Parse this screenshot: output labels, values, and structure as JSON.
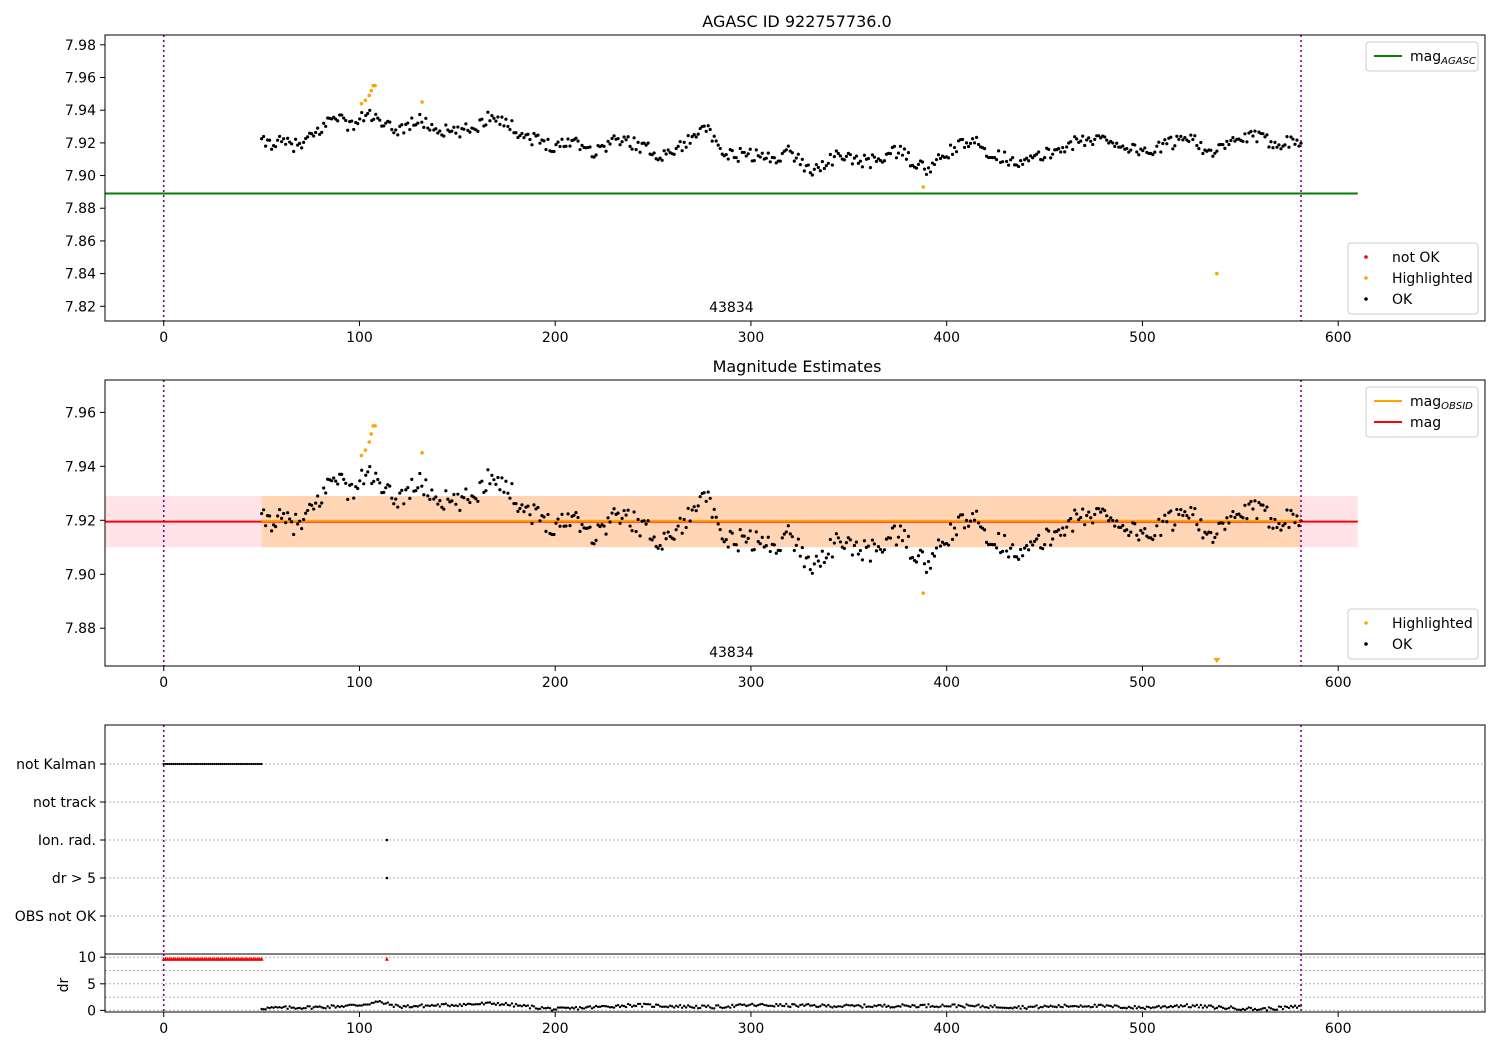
{
  "chart_data": [
    {
      "type": "scatter",
      "title": "AGASC ID 922757736.0",
      "xlim": [
        -30,
        675
      ],
      "ylim": [
        7.811,
        7.986
      ],
      "xticks": [
        0,
        100,
        200,
        300,
        400,
        500,
        600
      ],
      "yticks": [
        7.82,
        7.84,
        7.86,
        7.88,
        7.9,
        7.92,
        7.94,
        7.96,
        7.98
      ],
      "ytick_labels": [
        "7.82",
        "7.84",
        "7.86",
        "7.88",
        "7.90",
        "7.92",
        "7.94",
        "7.96",
        "7.98"
      ],
      "vlines": [
        0,
        581
      ],
      "obsid_label": {
        "text": "43834",
        "x": 290
      },
      "legend_upper": {
        "placement": "upper-right",
        "entries": [
          {
            "label": "mag",
            "sub": "AGASC",
            "color": "#008000",
            "kind": "line"
          }
        ]
      },
      "legend_lower": {
        "placement": "lower-right",
        "entries": [
          {
            "label": "not OK",
            "color": "#ff0000",
            "kind": "dot"
          },
          {
            "label": "Highlighted",
            "color": "#ffa500",
            "kind": "dot"
          },
          {
            "label": "OK",
            "color": "#000000",
            "kind": "dot"
          }
        ]
      },
      "series": [
        {
          "name": "mag AGASC",
          "kind": "hline",
          "y": 7.889,
          "x": [
            -30,
            610
          ],
          "color": "#008000"
        },
        {
          "name": "OK",
          "kind": "trace",
          "x_start": 50,
          "x_end": 581,
          "count": 520,
          "color": "#000000",
          "knots": [
            [
              50,
              7.92
            ],
            [
              60,
              7.92
            ],
            [
              70,
              7.918
            ],
            [
              80,
              7.928
            ],
            [
              88,
              7.938
            ],
            [
              95,
              7.93
            ],
            [
              105,
              7.938
            ],
            [
              112,
              7.93
            ],
            [
              120,
              7.928
            ],
            [
              130,
              7.934
            ],
            [
              140,
              7.928
            ],
            [
              150,
              7.926
            ],
            [
              160,
              7.93
            ],
            [
              168,
              7.938
            ],
            [
              175,
              7.932
            ],
            [
              185,
              7.924
            ],
            [
              200,
              7.918
            ],
            [
              210,
              7.922
            ],
            [
              220,
              7.914
            ],
            [
              230,
              7.922
            ],
            [
              240,
              7.92
            ],
            [
              255,
              7.912
            ],
            [
              270,
              7.922
            ],
            [
              275,
              7.934
            ],
            [
              285,
              7.912
            ],
            [
              300,
              7.913
            ],
            [
              310,
              7.91
            ],
            [
              320,
              7.915
            ],
            [
              330,
              7.903
            ],
            [
              345,
              7.912
            ],
            [
              360,
              7.908
            ],
            [
              375,
              7.915
            ],
            [
              390,
              7.903
            ],
            [
              405,
              7.918
            ],
            [
              415,
              7.92
            ],
            [
              425,
              7.912
            ],
            [
              440,
              7.908
            ],
            [
              455,
              7.915
            ],
            [
              465,
              7.92
            ],
            [
              480,
              7.923
            ],
            [
              495,
              7.916
            ],
            [
              505,
              7.915
            ],
            [
              515,
              7.92
            ],
            [
              525,
              7.925
            ],
            [
              535,
              7.912
            ],
            [
              545,
              7.92
            ],
            [
              555,
              7.924
            ],
            [
              570,
              7.92
            ],
            [
              581,
              7.922
            ]
          ],
          "wiggle": 0.004
        },
        {
          "name": "Highlighted",
          "kind": "points",
          "color": "#ffa500",
          "points": [
            [
              101,
              7.944
            ],
            [
              103,
              7.946
            ],
            [
              105,
              7.949
            ],
            [
              106,
              7.952
            ],
            [
              107,
              7.955
            ],
            [
              108,
              7.955
            ],
            [
              132,
              7.945
            ],
            [
              388,
              7.893
            ],
            [
              538,
              7.84
            ]
          ]
        }
      ]
    },
    {
      "type": "scatter",
      "title": "Magnitude Estimates",
      "xlim": [
        -30,
        675
      ],
      "ylim": [
        7.866,
        7.972
      ],
      "xticks": [
        0,
        100,
        200,
        300,
        400,
        500,
        600
      ],
      "yticks": [
        7.88,
        7.9,
        7.92,
        7.94,
        7.96
      ],
      "ytick_labels": [
        "7.88",
        "7.90",
        "7.92",
        "7.94",
        "7.96"
      ],
      "vlines": [
        0,
        581
      ],
      "obsid_label": {
        "text": "43834",
        "x": 290
      },
      "bands": [
        {
          "name": "mag band",
          "x": [
            -30,
            610
          ],
          "y": [
            7.91,
            7.929
          ],
          "color": "#ffc0cb",
          "opacity": 0.45
        },
        {
          "name": "mag OBSID band",
          "x": [
            50,
            581
          ],
          "y": [
            7.91,
            7.929
          ],
          "color": "#ffa500",
          "opacity": 0.22
        }
      ],
      "legend_upper": {
        "placement": "upper-right",
        "entries": [
          {
            "label": "mag",
            "sub": "OBSID",
            "color": "#ffa500",
            "kind": "line"
          },
          {
            "label": "mag",
            "sub": "",
            "color": "#ff0000",
            "kind": "line"
          }
        ]
      },
      "legend_lower": {
        "placement": "lower-right",
        "entries": [
          {
            "label": "Highlighted",
            "color": "#ffa500",
            "kind": "dot"
          },
          {
            "label": "OK",
            "color": "#000000",
            "kind": "dot"
          }
        ]
      },
      "series": [
        {
          "name": "mag",
          "kind": "hline",
          "y": 7.9195,
          "x": [
            -30,
            610
          ],
          "color": "#ff0000"
        },
        {
          "name": "mag OBSID",
          "kind": "hline",
          "y": 7.9198,
          "x": [
            50,
            581
          ],
          "color": "#ffa500"
        },
        {
          "name": "OK",
          "kind": "trace",
          "x_start": 50,
          "x_end": 581,
          "count": 520,
          "color": "#000000",
          "knots": [
            [
              50,
              7.92
            ],
            [
              60,
              7.92
            ],
            [
              70,
              7.918
            ],
            [
              80,
              7.928
            ],
            [
              88,
              7.938
            ],
            [
              95,
              7.93
            ],
            [
              105,
              7.938
            ],
            [
              112,
              7.93
            ],
            [
              120,
              7.928
            ],
            [
              130,
              7.934
            ],
            [
              140,
              7.928
            ],
            [
              150,
              7.926
            ],
            [
              160,
              7.93
            ],
            [
              168,
              7.938
            ],
            [
              175,
              7.932
            ],
            [
              185,
              7.924
            ],
            [
              200,
              7.918
            ],
            [
              210,
              7.922
            ],
            [
              220,
              7.914
            ],
            [
              230,
              7.922
            ],
            [
              240,
              7.92
            ],
            [
              255,
              7.912
            ],
            [
              270,
              7.922
            ],
            [
              275,
              7.934
            ],
            [
              285,
              7.912
            ],
            [
              300,
              7.913
            ],
            [
              310,
              7.91
            ],
            [
              320,
              7.915
            ],
            [
              330,
              7.903
            ],
            [
              345,
              7.912
            ],
            [
              360,
              7.908
            ],
            [
              375,
              7.915
            ],
            [
              390,
              7.903
            ],
            [
              405,
              7.918
            ],
            [
              415,
              7.92
            ],
            [
              425,
              7.912
            ],
            [
              440,
              7.908
            ],
            [
              455,
              7.915
            ],
            [
              465,
              7.92
            ],
            [
              480,
              7.923
            ],
            [
              495,
              7.916
            ],
            [
              505,
              7.915
            ],
            [
              515,
              7.92
            ],
            [
              525,
              7.925
            ],
            [
              535,
              7.912
            ],
            [
              545,
              7.92
            ],
            [
              555,
              7.924
            ],
            [
              570,
              7.92
            ],
            [
              581,
              7.922
            ]
          ],
          "wiggle": 0.004
        },
        {
          "name": "Highlighted",
          "kind": "points",
          "color": "#ffa500",
          "points": [
            [
              101,
              7.944
            ],
            [
              103,
              7.946
            ],
            [
              105,
              7.949
            ],
            [
              106,
              7.952
            ],
            [
              107,
              7.955
            ],
            [
              108,
              7.955
            ],
            [
              132,
              7.945
            ],
            [
              388,
              7.893
            ]
          ]
        },
        {
          "name": "Highlighted (off-scale)",
          "kind": "marker-down",
          "color": "#ffa500",
          "points": [
            [
              538,
              7.866
            ]
          ]
        }
      ]
    },
    {
      "type": "scatter",
      "title": "",
      "xlim": [
        -30,
        675
      ],
      "categories": [
        "not Kalman",
        "not track",
        "Ion. rad.",
        "dr > 5",
        "OBS not OK"
      ],
      "series": [
        {
          "name": "not Kalman",
          "kind": "range",
          "x": [
            0,
            50
          ],
          "color": "#000000"
        },
        {
          "name": "Ion. rad.",
          "kind": "points",
          "x": [
            114
          ],
          "color": "#000000"
        },
        {
          "name": "dr > 5",
          "kind": "points",
          "x": [
            114
          ],
          "color": "#000000"
        }
      ],
      "vlines": [
        0,
        581
      ]
    },
    {
      "type": "scatter",
      "title": "",
      "ylabel": "dr",
      "xlim": [
        -30,
        675
      ],
      "ylim": [
        -0.3,
        10.6
      ],
      "xticks": [
        0,
        100,
        200,
        300,
        400,
        500,
        600
      ],
      "yticks": [
        0,
        5,
        10
      ],
      "ytick_labels": [
        "0",
        "5",
        "10"
      ],
      "vlines": [
        0,
        581
      ],
      "series": [
        {
          "name": "dr capped",
          "kind": "range",
          "x": [
            0,
            50
          ],
          "y": 9.7,
          "color": "#ff0000",
          "marker": "triangle"
        },
        {
          "name": "dr capped single",
          "kind": "points",
          "points": [
            [
              114,
              9.7
            ]
          ],
          "color": "#ff0000",
          "marker": "triangle"
        },
        {
          "name": "dr",
          "kind": "trace",
          "x_start": 50,
          "x_end": 581,
          "count": 520,
          "color": "#000000",
          "knots": [
            [
              50,
              0.4
            ],
            [
              80,
              0.6
            ],
            [
              100,
              1.0
            ],
            [
              110,
              1.6
            ],
            [
              120,
              0.7
            ],
            [
              170,
              1.3
            ],
            [
              200,
              0.2
            ],
            [
              240,
              1.0
            ],
            [
              280,
              0.6
            ],
            [
              300,
              1.0
            ],
            [
              350,
              0.8
            ],
            [
              400,
              0.9
            ],
            [
              440,
              0.6
            ],
            [
              470,
              0.9
            ],
            [
              500,
              0.5
            ],
            [
              520,
              0.9
            ],
            [
              560,
              0.2
            ],
            [
              581,
              0.7
            ]
          ],
          "wiggle": 0.3
        }
      ]
    }
  ]
}
